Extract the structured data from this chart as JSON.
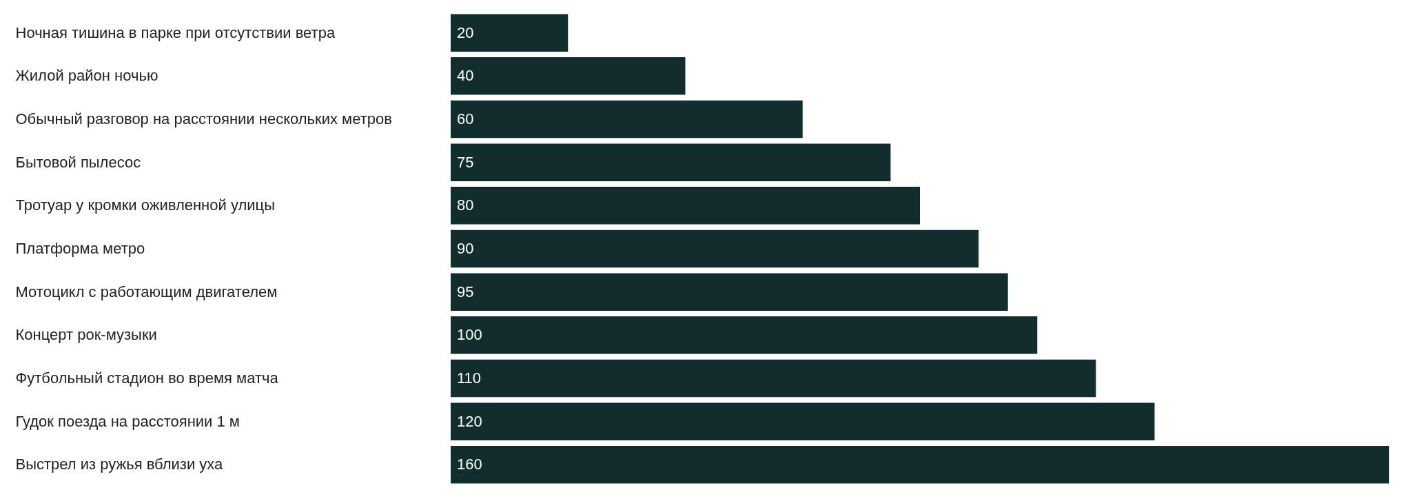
{
  "chart_data": {
    "type": "bar",
    "orientation": "horizontal",
    "data_labels": true,
    "categories": [
      "Ночная тишина в парке при отсутствии ветра",
      "Жилой район ночью",
      "Обычный разговор на расстоянии нескольких метров",
      "Бытовой пылесос",
      "Тротуар у кромки оживленной улицы",
      "Платформа метро",
      "Мотоцикл с работающим двигателем",
      "Концерт рок-музыки",
      "Футбольный стадион во время матча",
      "Гудок поезда на расстоянии 1 м",
      "Выстрел из ружья вблизи уха"
    ],
    "values": [
      20,
      40,
      60,
      75,
      80,
      90,
      95,
      100,
      110,
      120,
      160
    ],
    "color": "#122d2d"
  }
}
